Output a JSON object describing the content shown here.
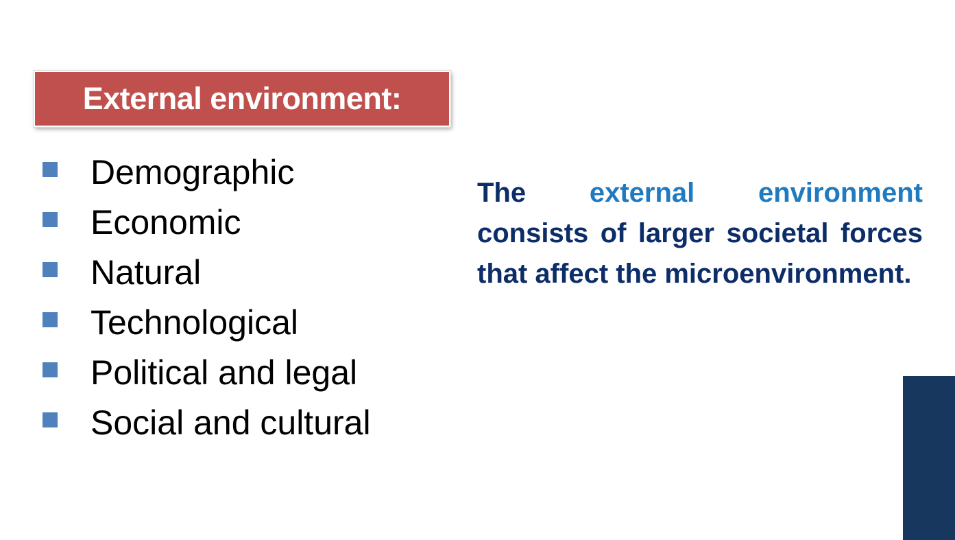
{
  "slide": {
    "title": "External environment:",
    "bullets": [
      "Demographic",
      "Economic",
      "Natural",
      "Technological",
      "Political and legal",
      "Social and cultural"
    ],
    "definition": {
      "lead": "The",
      "highlight": "external environment",
      "rest": "consists of larger societal forces that affect the microenvironment."
    }
  },
  "colors": {
    "title_background": "#c0504d",
    "bullet_marker": "#4f81bd",
    "definition_text": "#0d2d69",
    "definition_highlight": "#1f7abf",
    "corner_bar": "#17375e"
  }
}
